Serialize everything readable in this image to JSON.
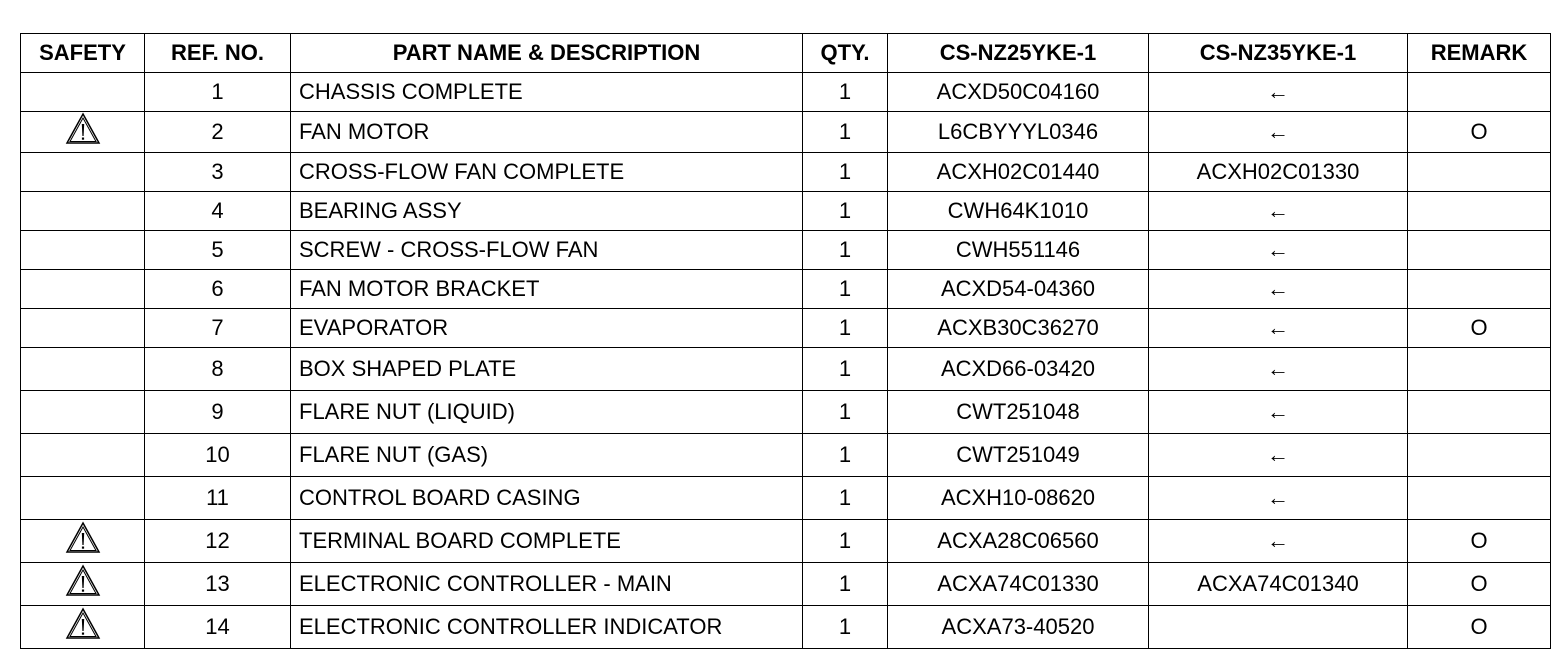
{
  "headers": [
    "SAFETY",
    "REF. NO.",
    "PART NAME & DESCRIPTION",
    "QTY.",
    "CS-NZ25YKE-1",
    "CS-NZ35YKE-1",
    "REMARK"
  ],
  "rows": [
    {
      "safety": false,
      "ref": "1",
      "name": "CHASSIS COMPLETE",
      "qty": "1",
      "nz25": "ACXD50C04160",
      "nz35": "←",
      "remark": ""
    },
    {
      "safety": true,
      "ref": "2",
      "name": "FAN MOTOR",
      "qty": "1",
      "nz25": "L6CBYYYL0346",
      "nz35": "←",
      "remark": "O"
    },
    {
      "safety": false,
      "ref": "3",
      "name": "CROSS-FLOW FAN COMPLETE",
      "qty": "1",
      "nz25": "ACXH02C01440",
      "nz35": "ACXH02C01330",
      "remark": ""
    },
    {
      "safety": false,
      "ref": "4",
      "name": "BEARING ASSY",
      "qty": "1",
      "nz25": "CWH64K1010",
      "nz35": "←",
      "remark": ""
    },
    {
      "safety": false,
      "ref": "5",
      "name": "SCREW - CROSS-FLOW FAN",
      "qty": "1",
      "nz25": "CWH551146",
      "nz35": "←",
      "remark": ""
    },
    {
      "safety": false,
      "ref": "6",
      "name": "FAN MOTOR BRACKET",
      "qty": "1",
      "nz25": "ACXD54-04360",
      "nz35": "←",
      "remark": ""
    },
    {
      "safety": false,
      "ref": "7",
      "name": "EVAPORATOR",
      "qty": "1",
      "nz25": "ACXB30C36270",
      "nz35": "←",
      "remark": "O"
    },
    {
      "safety": false,
      "ref": "8",
      "name": "BOX SHAPED PLATE",
      "qty": "1",
      "nz25": "ACXD66-03420",
      "nz35": "←",
      "remark": ""
    },
    {
      "safety": false,
      "ref": "9",
      "name": "FLARE NUT (LIQUID)",
      "qty": "1",
      "nz25": "CWT251048",
      "nz35": "←",
      "remark": ""
    },
    {
      "safety": false,
      "ref": "10",
      "name": "FLARE NUT (GAS)",
      "qty": "1",
      "nz25": "CWT251049",
      "nz35": "←",
      "remark": ""
    },
    {
      "safety": false,
      "ref": "11",
      "name": "CONTROL BOARD CASING",
      "qty": "1",
      "nz25": "ACXH10-08620",
      "nz35": "←",
      "remark": ""
    },
    {
      "safety": true,
      "ref": "12",
      "name": "TERMINAL BOARD COMPLETE",
      "qty": "1",
      "nz25": "ACXA28C06560",
      "nz35": "←",
      "remark": "O"
    },
    {
      "safety": true,
      "ref": "13",
      "name": "ELECTRONIC CONTROLLER - MAIN",
      "qty": "1",
      "nz25": "ACXA74C01330",
      "nz35": "ACXA74C01340",
      "remark": "O"
    },
    {
      "safety": true,
      "ref": "14",
      "name": "ELECTRONIC CONTROLLER INDICATOR",
      "qty": "1",
      "nz25": "ACXA73-40520",
      "nz35": "",
      "remark": "O"
    }
  ]
}
